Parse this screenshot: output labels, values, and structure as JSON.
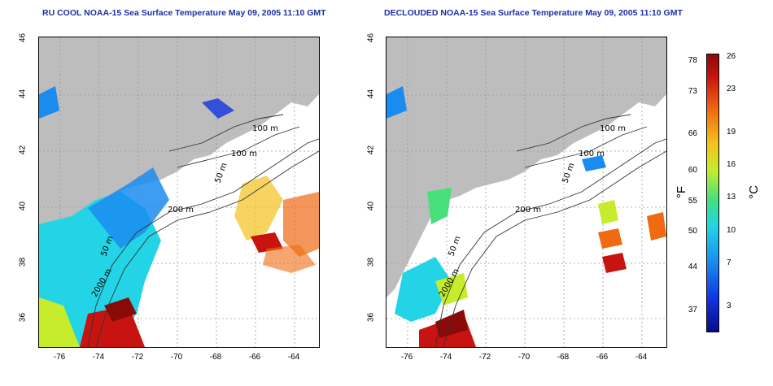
{
  "titles": {
    "left": "RU COOL NOAA-15 Sea Surface Temperature May 09, 2005 11:10 GMT",
    "right": "DECLOUDED NOAA-15 Sea Surface Temperature May 09, 2005 11:10 GMT"
  },
  "axes": {
    "x_ticks": [
      "-76",
      "-74",
      "-72",
      "-70",
      "-68",
      "-66",
      "-64"
    ],
    "y_ticks": [
      "36",
      "38",
      "40",
      "42",
      "44",
      "46"
    ]
  },
  "contour_labels": [
    "100 m",
    "100 m",
    "50 m",
    "200 m",
    "50 m",
    "2000 m"
  ],
  "colorbar": {
    "fahrenheit_ticks": [
      "78",
      "73",
      "66",
      "60",
      "55",
      "50",
      "44",
      "37"
    ],
    "celsius_ticks": [
      "26",
      "23",
      "19",
      "16",
      "13",
      "10",
      "7",
      "3"
    ],
    "left_unit": "°F",
    "right_unit": "°C",
    "colors": [
      "#0a0a8c",
      "#1035e0",
      "#1a8cf0",
      "#22d4e6",
      "#48e07a",
      "#c6ec2c",
      "#f4c21c",
      "#f06a12",
      "#c81410",
      "#8a0a08"
    ]
  }
}
